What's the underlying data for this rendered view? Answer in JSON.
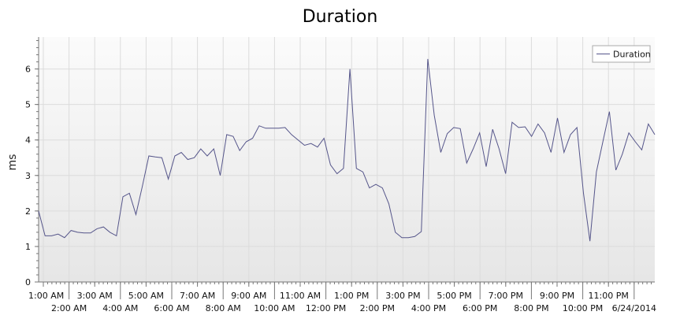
{
  "colors": {
    "series": "#55558a",
    "grid": "#dcdcdc",
    "axis": "#777777",
    "plot_top": "#fbfbfb",
    "plot_bottom": "#e6e6e6"
  },
  "chart_data": {
    "type": "line",
    "title": "Duration",
    "xlabel": "",
    "ylabel": "ms",
    "ylim": [
      0,
      6.9
    ],
    "grid": true,
    "legend": {
      "position": "top-right",
      "entries": [
        "Duration"
      ]
    },
    "yticks": [
      "0",
      "1",
      "2",
      "3",
      "4",
      "5",
      "6"
    ],
    "xticks_upper": [
      "1:00 AM",
      "3:00 AM",
      "5:00 AM",
      "7:00 AM",
      "9:00 AM",
      "11:00 AM",
      "1:00 PM",
      "3:00 PM",
      "5:00 PM",
      "7:00 PM",
      "9:00 PM",
      "11:00 PM"
    ],
    "xticks_lower": [
      "2:00 AM",
      "4:00 AM",
      "6:00 AM",
      "8:00 AM",
      "10:00 AM",
      "12:00 PM",
      "2:00 PM",
      "4:00 PM",
      "6:00 PM",
      "8:00 PM",
      "10:00 PM",
      "6/24/2014"
    ],
    "series": [
      {
        "name": "Duration",
        "values": [
          2.0,
          1.3,
          1.3,
          1.35,
          1.25,
          1.45,
          1.4,
          1.38,
          1.38,
          1.5,
          1.55,
          1.4,
          1.3,
          2.4,
          2.5,
          1.9,
          2.7,
          3.55,
          3.52,
          3.5,
          2.9,
          3.55,
          3.65,
          3.45,
          3.5,
          3.75,
          3.55,
          3.75,
          3.0,
          4.15,
          4.1,
          3.7,
          3.95,
          4.05,
          4.4,
          4.33,
          4.33,
          4.33,
          4.35,
          4.15,
          4.0,
          3.85,
          3.9,
          3.8,
          4.05,
          3.3,
          3.05,
          3.2,
          6.0,
          3.2,
          3.1,
          2.65,
          2.75,
          2.65,
          2.2,
          1.4,
          1.25,
          1.25,
          1.28,
          1.42,
          6.28,
          4.7,
          3.65,
          4.18,
          4.35,
          4.32,
          3.35,
          3.75,
          4.2,
          3.25,
          4.3,
          3.75,
          3.05,
          4.5,
          4.35,
          4.37,
          4.1,
          4.45,
          4.2,
          3.65,
          4.62,
          3.65,
          4.15,
          4.35,
          2.5,
          1.15,
          3.1,
          3.95,
          4.8,
          3.15,
          3.6,
          4.2,
          3.95,
          3.72,
          4.45,
          4.15
        ]
      }
    ]
  }
}
